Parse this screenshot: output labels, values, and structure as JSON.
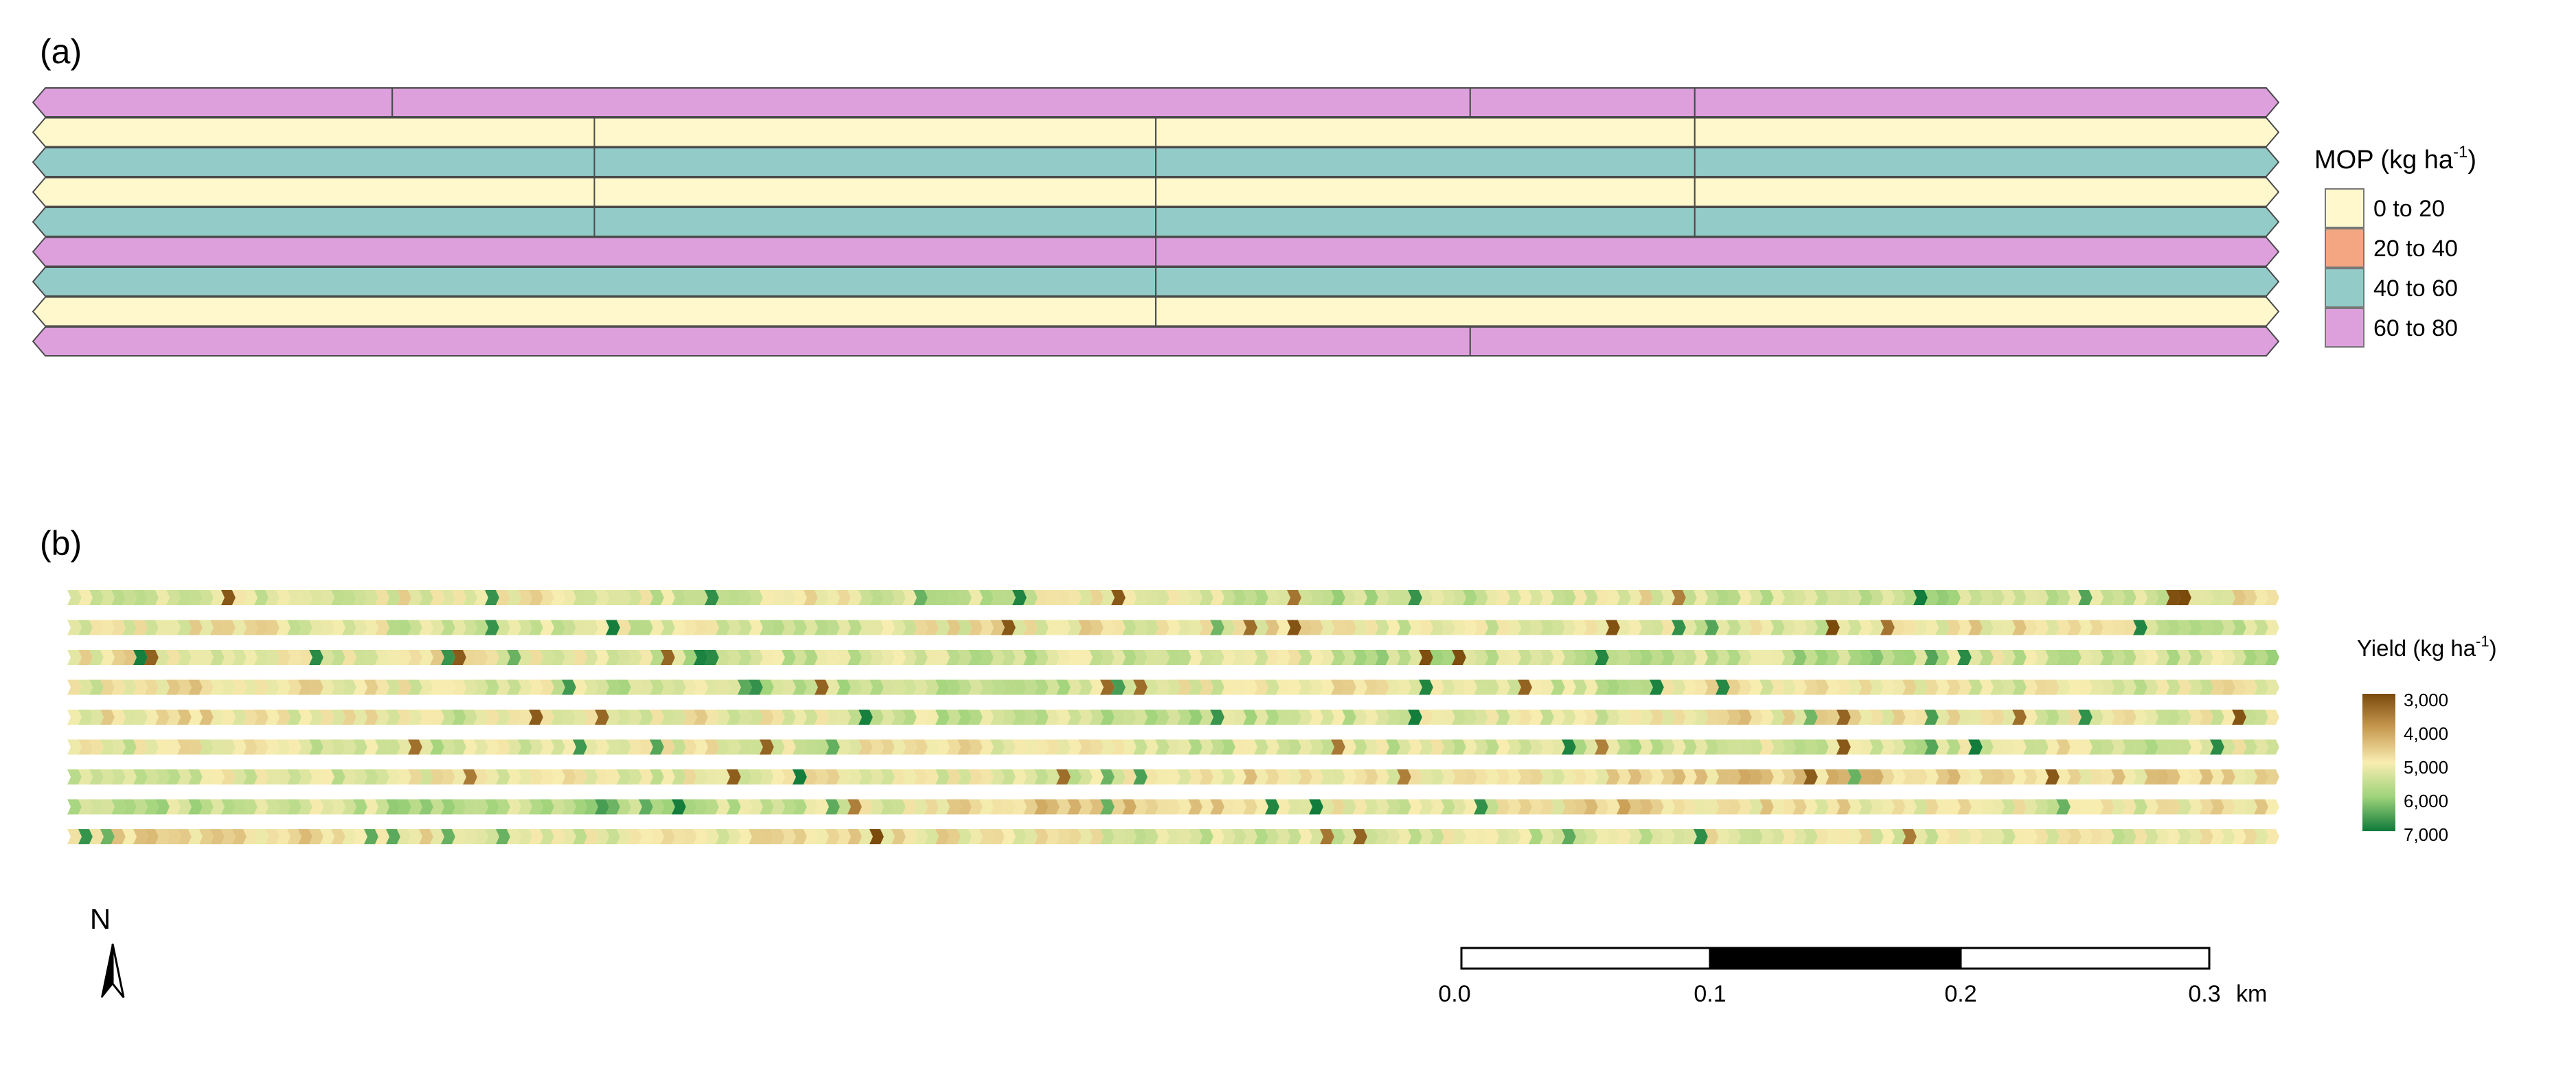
{
  "panel_a": {
    "label": "(a)",
    "legend": {
      "title": "MOP (kg ha",
      "title_sup": "-1",
      "title_close": ")",
      "items": [
        {
          "label": "0 to 20",
          "color": "#FFF8CC"
        },
        {
          "label": "20 to 40",
          "color": "#F4A582"
        },
        {
          "label": "40 to 60",
          "color": "#92CBC8"
        },
        {
          "label": "60 to 80",
          "color": "#DDA0DD"
        }
      ]
    },
    "strips": [
      [
        [
          0.0,
          0.16,
          "60 to 80"
        ],
        [
          0.16,
          0.64,
          "60 to 80"
        ],
        [
          0.64,
          0.74,
          "60 to 80"
        ],
        [
          0.74,
          1.0,
          "60 to 80"
        ]
      ],
      [
        [
          0.0,
          0.25,
          "0 to 20"
        ],
        [
          0.25,
          0.5,
          "0 to 20"
        ],
        [
          0.5,
          0.74,
          "0 to 20"
        ],
        [
          0.74,
          1.0,
          "0 to 20"
        ]
      ],
      [
        [
          0.0,
          0.25,
          "40 to 60"
        ],
        [
          0.25,
          0.5,
          "40 to 60"
        ],
        [
          0.5,
          0.74,
          "40 to 60"
        ],
        [
          0.74,
          1.0,
          "40 to 60"
        ]
      ],
      [
        [
          0.0,
          0.25,
          "0 to 20"
        ],
        [
          0.25,
          0.5,
          "0 to 20"
        ],
        [
          0.5,
          0.74,
          "0 to 20"
        ],
        [
          0.74,
          1.0,
          "0 to 20"
        ]
      ],
      [
        [
          0.0,
          0.25,
          "40 to 60"
        ],
        [
          0.25,
          0.5,
          "40 to 60"
        ],
        [
          0.5,
          0.74,
          "40 to 60"
        ],
        [
          0.74,
          1.0,
          "40 to 60"
        ]
      ],
      [
        [
          0.0,
          0.5,
          "60 to 80"
        ],
        [
          0.5,
          1.0,
          "60 to 80"
        ]
      ],
      [
        [
          0.0,
          0.5,
          "40 to 60"
        ],
        [
          0.5,
          1.0,
          "40 to 60"
        ]
      ],
      [
        [
          0.0,
          0.5,
          "0 to 20"
        ],
        [
          0.5,
          1.0,
          "0 to 20"
        ]
      ],
      [
        [
          0.0,
          0.64,
          "60 to 80"
        ],
        [
          0.64,
          1.0,
          "60 to 80"
        ]
      ]
    ]
  },
  "panel_b": {
    "label": "(b)",
    "legend": {
      "title": "Yield (kg ha",
      "title_sup": "-1",
      "title_close": ")",
      "min": 3000,
      "max": 7000,
      "ticks": [
        {
          "value": 3000,
          "label": "3,000"
        },
        {
          "value": 4000,
          "label": "4,000"
        },
        {
          "value": 5000,
          "label": "5,000"
        },
        {
          "value": 6000,
          "label": "6,000"
        },
        {
          "value": 7000,
          "label": "7,000"
        }
      ],
      "colors": [
        "#7A4A0B",
        "#C89B52",
        "#F8EDB0",
        "#9FD37A",
        "#0E7A3A"
      ]
    },
    "row_count": 9
  },
  "north_arrow": {
    "label": "N"
  },
  "scale_bar": {
    "unit": "km",
    "ticks": [
      "0.0",
      "0.1",
      "0.2",
      "0.3"
    ]
  }
}
